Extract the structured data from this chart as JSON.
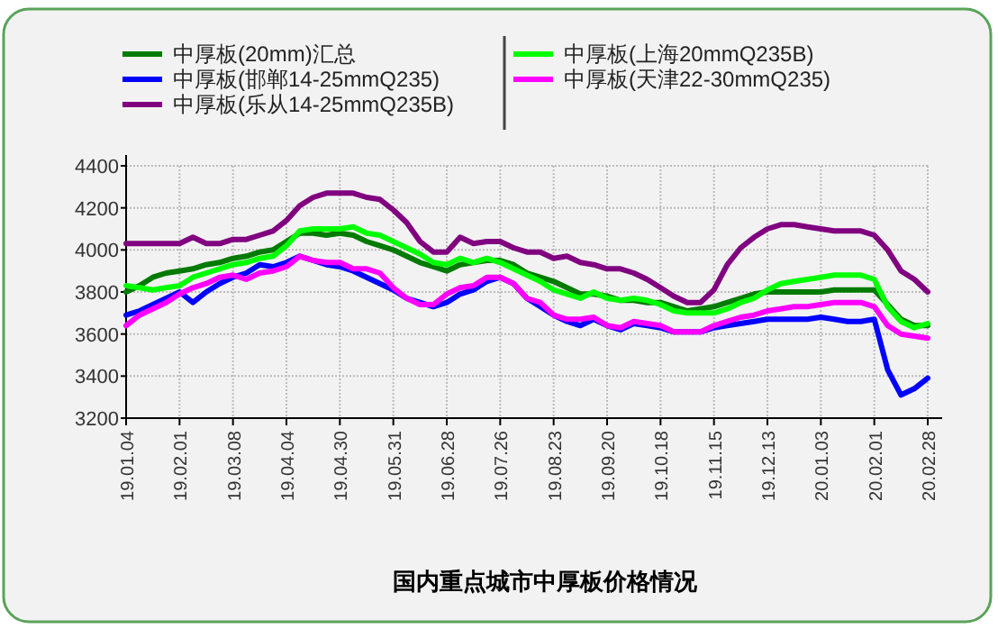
{
  "chart_data": {
    "type": "line",
    "title": "国内重点城市中厚板价格情况",
    "categories": [
      "19.01.04",
      null,
      null,
      null,
      "19.02.01",
      null,
      null,
      null,
      "19.03.08",
      null,
      null,
      null,
      "19.04.04",
      null,
      null,
      null,
      "19.04.30",
      null,
      null,
      null,
      "19.05.31",
      null,
      null,
      null,
      "19.06.28",
      null,
      null,
      null,
      "19.07.26",
      null,
      null,
      null,
      "19.08.23",
      null,
      null,
      null,
      "19.09.20",
      null,
      null,
      null,
      "19.10.18",
      null,
      null,
      null,
      "19.11.15",
      null,
      null,
      null,
      "19.12.13",
      null,
      null,
      null,
      "20.01.03",
      null,
      null,
      null,
      "20.02.01",
      null,
      null,
      null,
      "20.02.28"
    ],
    "series": [
      {
        "name": "中厚板(20mm)汇总",
        "color": "#007a00",
        "values": [
          3800,
          3830,
          3870,
          3890,
          3900,
          3910,
          3930,
          3940,
          3960,
          3970,
          3990,
          4000,
          4040,
          4080,
          4080,
          4070,
          4080,
          4070,
          4040,
          4020,
          4000,
          3970,
          3940,
          3920,
          3900,
          3930,
          3940,
          3950,
          3950,
          3930,
          3890,
          3870,
          3850,
          3820,
          3790,
          3790,
          3780,
          3760,
          3760,
          3750,
          3750,
          3730,
          3710,
          3720,
          3730,
          3750,
          3770,
          3790,
          3800,
          3800,
          3800,
          3800,
          3800,
          3810,
          3810,
          3810,
          3810,
          3740,
          3670,
          3640,
          3640
        ]
      },
      {
        "name": "中厚板(邯郸14-25mmQ235)",
        "color": "#0000ff",
        "values": [
          3690,
          3710,
          3740,
          3770,
          3800,
          3750,
          3800,
          3840,
          3870,
          3890,
          3930,
          3920,
          3940,
          3970,
          3950,
          3930,
          3920,
          3900,
          3870,
          3840,
          3810,
          3770,
          3750,
          3730,
          3750,
          3790,
          3810,
          3850,
          3870,
          3840,
          3770,
          3730,
          3690,
          3660,
          3640,
          3670,
          3640,
          3620,
          3650,
          3640,
          3630,
          3610,
          3610,
          3610,
          3630,
          3640,
          3650,
          3660,
          3670,
          3670,
          3670,
          3670,
          3680,
          3670,
          3660,
          3660,
          3670,
          3430,
          3310,
          3340,
          3390
        ]
      },
      {
        "name": "中厚板(乐从14-25mmQ235B)",
        "color": "#800080",
        "values": [
          4030,
          4030,
          4030,
          4030,
          4030,
          4060,
          4030,
          4030,
          4050,
          4050,
          4070,
          4090,
          4140,
          4210,
          4250,
          4270,
          4270,
          4270,
          4250,
          4240,
          4190,
          4130,
          4040,
          3990,
          3990,
          4060,
          4030,
          4040,
          4040,
          4010,
          3990,
          3990,
          3960,
          3970,
          3940,
          3930,
          3910,
          3910,
          3890,
          3860,
          3820,
          3780,
          3750,
          3750,
          3810,
          3930,
          4010,
          4060,
          4100,
          4120,
          4120,
          4110,
          4100,
          4090,
          4090,
          4090,
          4070,
          4000,
          3900,
          3860,
          3800
        ]
      },
      {
        "name": "中厚板(上海20mmQ235B)",
        "color": "#00ff00",
        "values": [
          3830,
          3820,
          3810,
          3820,
          3830,
          3870,
          3890,
          3910,
          3930,
          3940,
          3960,
          3970,
          4020,
          4090,
          4100,
          4100,
          4100,
          4110,
          4080,
          4070,
          4040,
          4010,
          3980,
          3940,
          3930,
          3960,
          3940,
          3960,
          3940,
          3910,
          3880,
          3850,
          3810,
          3790,
          3770,
          3800,
          3770,
          3760,
          3770,
          3760,
          3740,
          3710,
          3700,
          3700,
          3700,
          3720,
          3750,
          3770,
          3810,
          3840,
          3850,
          3860,
          3870,
          3880,
          3880,
          3880,
          3860,
          3730,
          3660,
          3630,
          3650
        ]
      },
      {
        "name": "中厚板(天津22-30mmQ235)",
        "color": "#ff00ff",
        "values": [
          3640,
          3690,
          3720,
          3750,
          3790,
          3820,
          3840,
          3870,
          3880,
          3860,
          3890,
          3900,
          3920,
          3970,
          3950,
          3940,
          3940,
          3910,
          3910,
          3890,
          3820,
          3770,
          3740,
          3740,
          3790,
          3820,
          3830,
          3870,
          3870,
          3840,
          3770,
          3750,
          3690,
          3670,
          3670,
          3680,
          3640,
          3630,
          3660,
          3650,
          3640,
          3610,
          3610,
          3610,
          3640,
          3660,
          3680,
          3690,
          3710,
          3720,
          3730,
          3730,
          3740,
          3750,
          3750,
          3750,
          3730,
          3640,
          3600,
          3590,
          3580
        ]
      }
    ],
    "ylim": [
      3200,
      4400
    ],
    "yticks": [
      3200,
      3400,
      3600,
      3800,
      4000,
      4200,
      4400
    ],
    "grid": true,
    "legend": "top",
    "line_style": "solid",
    "marker": "none"
  }
}
